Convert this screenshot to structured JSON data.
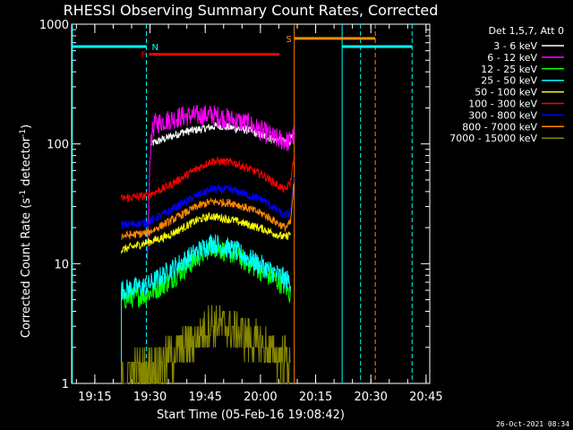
{
  "chart_data": {
    "type": "line",
    "title": "RHESSI Observing Summary Count Rates, Corrected",
    "xlabel": "Start Time (05-Feb-16 19:08:42)",
    "ylabel": "Corrected Count Rate (s⁻¹ detector⁻¹)",
    "ylabel_main": "Corrected Count Rate (s",
    "ylabel_sup1": "-1",
    "ylabel_mid": " detector",
    "ylabel_sup2": "-1",
    "ylabel_end": ")",
    "yscale": "log",
    "ylim": [
      1,
      1000
    ],
    "xlim_minutes": [
      0,
      97.3
    ],
    "x_ticks": [
      {
        "label": "19:15",
        "min": 6.3
      },
      {
        "label": "19:30",
        "min": 21.3
      },
      {
        "label": "19:45",
        "min": 36.3
      },
      {
        "label": "20:00",
        "min": 51.3
      },
      {
        "label": "20:15",
        "min": 66.3
      },
      {
        "label": "20:30",
        "min": 81.3
      },
      {
        "label": "20:45",
        "min": 96.3
      }
    ],
    "y_ticks": [
      {
        "label": "1",
        "value": 1
      },
      {
        "label": "10",
        "value": 10
      },
      {
        "label": "100",
        "value": 100
      },
      {
        "label": "1000",
        "value": 1000
      }
    ],
    "legend_header": "Det 1,5,7, Att 0",
    "legend_placement": "right",
    "series": [
      {
        "name": "3 - 6 keV",
        "color": "#ffffff",
        "points": [
          [
            21.5,
            100
          ],
          [
            30,
            125
          ],
          [
            40,
            142
          ],
          [
            48,
            130
          ],
          [
            55,
            108
          ],
          [
            59,
            104
          ],
          [
            60.5,
            118
          ]
        ]
      },
      {
        "name": "6 - 12 keV",
        "color": "#ff00ff",
        "points": [
          [
            20.5,
            10
          ],
          [
            21.5,
            110
          ],
          [
            22.5,
            148
          ],
          [
            30,
            170
          ],
          [
            38,
            175
          ],
          [
            48,
            148
          ],
          [
            55,
            112
          ],
          [
            59,
            104
          ],
          [
            60.5,
            120
          ]
        ]
      },
      {
        "name": "12 - 25 keV",
        "color": "#00ff00",
        "points": [
          [
            13.5,
            5
          ],
          [
            20.5,
            5.5
          ],
          [
            26,
            7
          ],
          [
            34,
            11
          ],
          [
            38,
            14
          ],
          [
            44,
            12
          ],
          [
            52,
            8.5
          ],
          [
            58,
            6.5
          ],
          [
            59.5,
            5.5
          ]
        ]
      },
      {
        "name": "25 - 50 keV",
        "color": "#00ffff",
        "points": [
          [
            13.5,
            6
          ],
          [
            20.5,
            6.5
          ],
          [
            26,
            8.5
          ],
          [
            34,
            12.5
          ],
          [
            38,
            15
          ],
          [
            44,
            13
          ],
          [
            52,
            9.5
          ],
          [
            58,
            7.5
          ],
          [
            59.5,
            7
          ]
        ]
      },
      {
        "name": "50 - 100 keV",
        "color": "#ffff00",
        "points": [
          [
            13.5,
            13
          ],
          [
            20.5,
            15
          ],
          [
            26,
            17
          ],
          [
            34,
            23
          ],
          [
            38,
            25
          ],
          [
            44,
            23
          ],
          [
            52,
            19.5
          ],
          [
            58,
            16.5
          ],
          [
            59.5,
            18
          ]
        ]
      },
      {
        "name": "100 - 300 keV",
        "color": "#ff0000",
        "points": [
          [
            13.5,
            35
          ],
          [
            20.5,
            37
          ],
          [
            26,
            44
          ],
          [
            34,
            62
          ],
          [
            38,
            72
          ],
          [
            44,
            70
          ],
          [
            52,
            55
          ],
          [
            58,
            41
          ],
          [
            59.5,
            48
          ],
          [
            60.5,
            85
          ]
        ]
      },
      {
        "name": "300 - 800 keV",
        "color": "#0000ff",
        "points": [
          [
            13.5,
            21
          ],
          [
            20.5,
            22
          ],
          [
            26,
            27
          ],
          [
            34,
            37
          ],
          [
            38,
            42
          ],
          [
            44,
            41
          ],
          [
            52,
            34
          ],
          [
            58,
            25
          ],
          [
            59.5,
            27
          ],
          [
            60.5,
            55
          ]
        ]
      },
      {
        "name": "800 - 7000 keV",
        "color": "#ff8800",
        "points": [
          [
            13.5,
            17
          ],
          [
            20.5,
            18
          ],
          [
            26,
            22
          ],
          [
            34,
            30
          ],
          [
            38,
            33
          ],
          [
            44,
            32
          ],
          [
            52,
            26
          ],
          [
            58,
            20
          ],
          [
            59.5,
            22
          ],
          [
            60.5,
            50
          ]
        ]
      },
      {
        "name": "7000 - 15000 keV",
        "color": "#888800",
        "points": [
          [
            13.5,
            1.2
          ],
          [
            20.5,
            1.3
          ],
          [
            26,
            1.6
          ],
          [
            34,
            2.4
          ],
          [
            38,
            3.2
          ],
          [
            44,
            2.8
          ],
          [
            52,
            2.0
          ],
          [
            58,
            1.6
          ],
          [
            59.5,
            1.5
          ]
        ]
      }
    ],
    "annotations": [
      {
        "label": "N",
        "color": "#00ffff",
        "x_start": 0,
        "x_end": 20.3,
        "y": 650,
        "line_x": [
          20.3,
          78.5
        ]
      },
      {
        "label": "F",
        "color": "#ff0000",
        "x_start": 21.0,
        "x_end": 56.5,
        "y": 560
      },
      {
        "label": "S",
        "color": "#ff8800",
        "x_start": 60.5,
        "x_end": 82.5,
        "y": 760,
        "line_x": [
          60.5,
          82.5
        ]
      },
      {
        "label": "",
        "color": "#00ffff",
        "x_start": 73.5,
        "x_end": 92.5,
        "y": 650,
        "line_x": [
          73.5
        ]
      }
    ],
    "cyan_vertical_lines": [
      0.2,
      73.5
    ]
  },
  "timestamp": "26-Oct-2021 08:34"
}
